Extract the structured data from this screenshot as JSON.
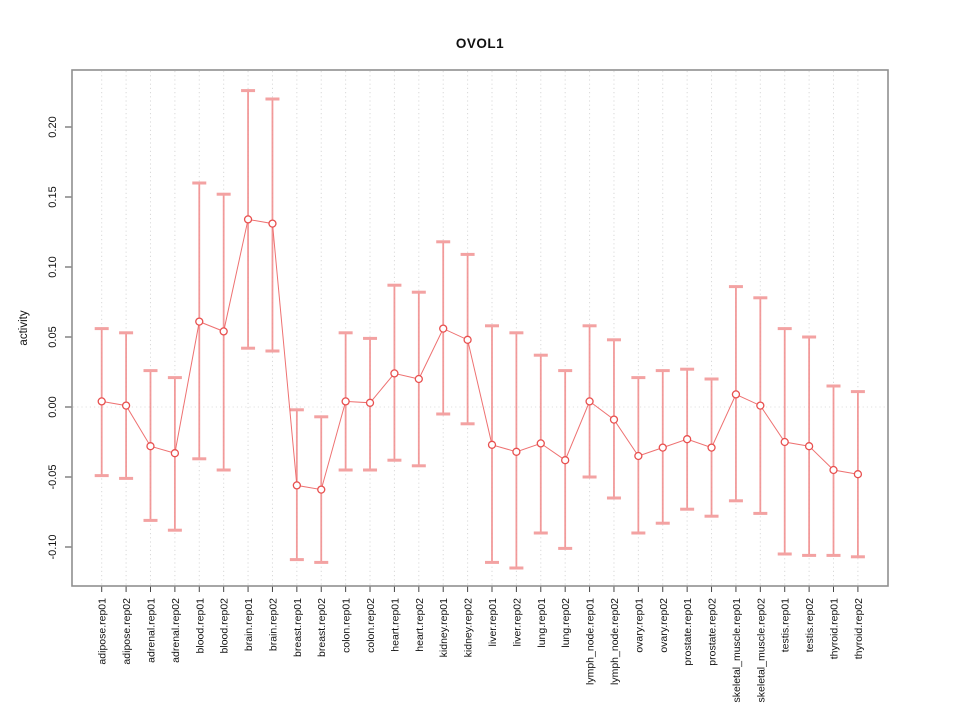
{
  "chart_data": {
    "type": "scatter",
    "title": "OVOL1",
    "xlabel": "",
    "ylabel": "activity",
    "ylim": [
      -0.128,
      0.241
    ],
    "yticks": [
      -0.1,
      -0.05,
      0.0,
      0.05,
      0.1,
      0.15,
      0.2
    ],
    "ytick_labels": [
      "-0.10",
      "-0.05",
      "0.00",
      "0.05",
      "0.10",
      "0.15",
      "0.20"
    ],
    "grid": "light dotted vertical line per category; light dotted horizontal line at 0",
    "legend_position": "none",
    "marker": "open-circle",
    "error_bars": true,
    "categories": [
      "adipose.rep01",
      "adipose.rep02",
      "adrenal.rep01",
      "adrenal.rep02",
      "blood.rep01",
      "blood.rep02",
      "brain.rep01",
      "brain.rep02",
      "breast.rep01",
      "breast.rep02",
      "colon.rep01",
      "colon.rep02",
      "heart.rep01",
      "heart.rep02",
      "kidney.rep01",
      "kidney.rep02",
      "liver.rep01",
      "liver.rep02",
      "lung.rep01",
      "lung.rep02",
      "lymph_node.rep01",
      "lymph_node.rep02",
      "ovary.rep01",
      "ovary.rep02",
      "prostate.rep01",
      "prostate.rep02",
      "skeletal_muscle.rep01",
      "skeletal_muscle.rep02",
      "testis.rep01",
      "testis.rep02",
      "thyroid.rep01",
      "thyroid.rep02"
    ],
    "series": [
      {
        "name": "activity",
        "values": [
          0.004,
          0.001,
          -0.028,
          -0.033,
          0.061,
          0.054,
          0.134,
          0.131,
          -0.056,
          -0.059,
          0.004,
          0.003,
          0.024,
          0.02,
          0.056,
          0.048,
          -0.027,
          -0.032,
          -0.026,
          -0.038,
          0.004,
          -0.009,
          -0.035,
          -0.029,
          -0.023,
          -0.029,
          0.009,
          0.001,
          -0.025,
          -0.028,
          -0.045,
          -0.048
        ],
        "error_low": [
          -0.049,
          -0.051,
          -0.081,
          -0.088,
          -0.037,
          -0.045,
          0.042,
          0.04,
          -0.109,
          -0.111,
          -0.045,
          -0.045,
          -0.038,
          -0.042,
          -0.005,
          -0.012,
          -0.111,
          -0.115,
          -0.09,
          -0.101,
          -0.05,
          -0.065,
          -0.09,
          -0.083,
          -0.073,
          -0.078,
          -0.067,
          -0.076,
          -0.105,
          -0.106,
          -0.106,
          -0.107
        ],
        "error_high": [
          0.056,
          0.053,
          0.026,
          0.021,
          0.16,
          0.152,
          0.226,
          0.22,
          -0.002,
          -0.007,
          0.053,
          0.049,
          0.087,
          0.082,
          0.118,
          0.109,
          0.058,
          0.053,
          0.037,
          0.026,
          0.058,
          0.048,
          0.021,
          0.026,
          0.027,
          0.02,
          0.086,
          0.078,
          0.056,
          0.05,
          0.015,
          0.011
        ]
      }
    ],
    "colors": {
      "point_stroke": "#e8504f",
      "line": "#ec6262",
      "error_stem": "#f19090",
      "error_cap": "#f3a2a2",
      "gridline": "#d9d9d9",
      "zero_line": "#e2e2e2",
      "box_border": "#8f8f8f",
      "tick": "#444444",
      "text": "#111111"
    }
  }
}
